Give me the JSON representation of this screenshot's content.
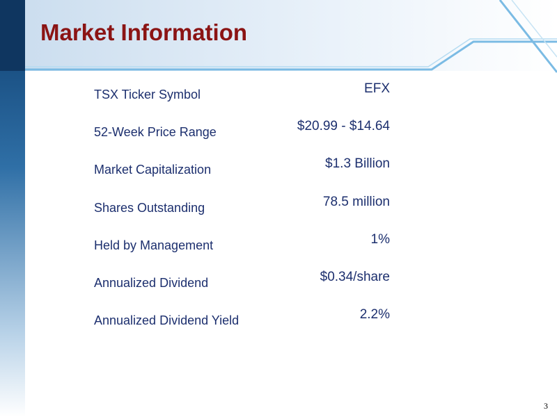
{
  "header": {
    "title": "Market Information"
  },
  "table": {
    "rows": [
      [
        "TSX Ticker Symbol",
        "EFX"
      ],
      [
        "52-Week Price Range",
        "$20.99 - $14.64"
      ],
      [
        "Market Capitalization",
        "$1.3 Billion"
      ],
      [
        "Shares Outstanding",
        "78.5 million"
      ],
      [
        "Held by Management",
        "1%"
      ],
      [
        "Annualized Dividend",
        "$0.34/share"
      ],
      [
        "Annualized Dividend Yield",
        "2.2%"
      ]
    ]
  },
  "footer": {
    "page_number": "3"
  }
}
